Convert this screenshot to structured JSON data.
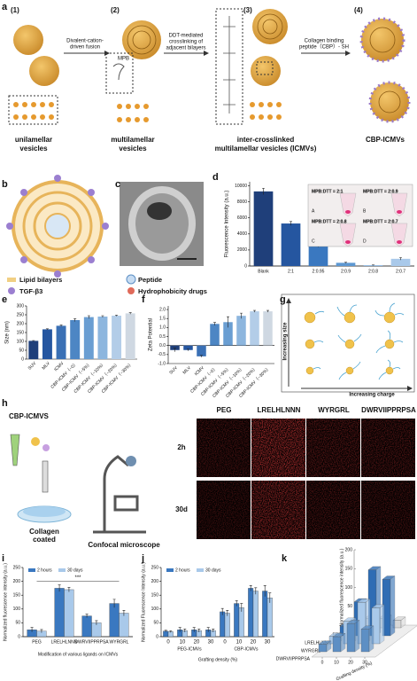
{
  "figure": {
    "panel_labels": [
      "a",
      "b",
      "c",
      "d",
      "e",
      "f",
      "g",
      "h",
      "i",
      "j",
      "k"
    ],
    "a": {
      "steps": [
        "(1)",
        "(2)",
        "(3)",
        "(4)"
      ],
      "arrow_1": [
        "Divalent-cation-",
        "driven fusion"
      ],
      "arrow_2": [
        "DDT-mediated",
        "crosslinking of",
        "adjacent bilayers"
      ],
      "arrow_3": [
        "Collagen binding",
        "peptide（CBP）- SH"
      ],
      "mpb": "MPB",
      "caption_1": [
        "unilamellar",
        "vesicles"
      ],
      "caption_2": [
        "multilamellar",
        "vesicles"
      ],
      "caption_3": [
        "inter-crosslinked",
        "multilamellar vesicles (ICMVs)"
      ],
      "caption_4": [
        "CBP-ICMVs"
      ]
    },
    "b": {
      "legend": [
        "Lipid bilayers",
        "TGF-β3",
        "Peptide",
        "Hydrophobicity drugs"
      ]
    },
    "g": {
      "y_label": "Increasing size",
      "x_label": "Increasing charge"
    },
    "h": {
      "reagent": "CBP-ICMVS",
      "substrate": [
        "Collagen",
        "coated"
      ],
      "instrument": "Confocal microscope",
      "columns": [
        "PEG",
        "LRELHLNNN",
        "WYRGRL",
        "DWRVIIPPRPSA"
      ],
      "rows": [
        "2h",
        "30d"
      ]
    }
  },
  "chart_data": [
    {
      "type": "bar",
      "y_label": "Fluorescence Intensity (a.u.)",
      "categories": [
        "Blank",
        "2:1",
        "2:0.95",
        "2:0.9",
        "2:0.8",
        "2:0.7"
      ],
      "values": [
        9300,
        5300,
        2700,
        400,
        100,
        900
      ],
      "errors": [
        400,
        250,
        350,
        60,
        30,
        150
      ],
      "colors": [
        "#1f3f7a",
        "#2556a0",
        "#3a78c0",
        "#5d98d2",
        "#8ab6e0",
        "#a9c9ea"
      ],
      "ylim": [
        0,
        10500
      ],
      "yticks": [
        0,
        2000,
        4000,
        6000,
        8000,
        10000
      ],
      "insets": [
        "MPB:DTT = 2:1",
        "MPB:DTT = 2:0.9",
        "MPB:DTT = 2:0.8",
        "MPB:DTT = 2:0.7"
      ],
      "inset_letters": [
        "A",
        "B",
        "C",
        "D"
      ]
    },
    {
      "type": "bar",
      "y_label": "Size (nm)",
      "categories": [
        "SUV",
        "MLV",
        "ICMV",
        "CBP-ICMV（~0）",
        "CBP-ICMV（~5%）",
        "CBP-ICMV（~10%）",
        "CBP-ICMV（~20%）",
        "CBP-ICMV（~30%）"
      ],
      "values": [
        103,
        168,
        188,
        220,
        237,
        240,
        245,
        258
      ],
      "errors": [
        2,
        3,
        5,
        8,
        8,
        5,
        3,
        4
      ],
      "colors": [
        "#1f3f7a",
        "#2556a0",
        "#3a70b5",
        "#4d86c4",
        "#6a9ed2",
        "#8db6de",
        "#b3cde8",
        "#cfd8e2"
      ],
      "ylim": [
        0,
        300
      ],
      "yticks": [
        0,
        50,
        100,
        150,
        200,
        250,
        300
      ]
    },
    {
      "type": "bar",
      "y_label": "Zeta Potential",
      "categories": [
        "SUV",
        "MLV",
        "ICMV",
        "CBP-ICMV（~0）",
        "CBP-ICMV（~5%）",
        "CBP-ICMV（~10%）",
        "CBP-ICMV（~20%）",
        "CBP-ICMV（~30%）"
      ],
      "values": [
        -0.25,
        -0.25,
        -0.6,
        1.2,
        1.3,
        1.65,
        1.9,
        1.9
      ],
      "errors": [
        0.1,
        0.05,
        0.05,
        0.08,
        0.3,
        0.15,
        0.05,
        0.05
      ],
      "colors": [
        "#1f3f7a",
        "#2556a0",
        "#3a70b5",
        "#4d86c4",
        "#6a9ed2",
        "#8db6de",
        "#b3cde8",
        "#cfd8e2"
      ],
      "ylim": [
        -1,
        2.2
      ],
      "yticks": [
        {
          "value": -1,
          "label": "-1.0"
        },
        {
          "value": -0.5,
          "label": "-0.5"
        },
        {
          "value": 0,
          "label": "0.0"
        },
        {
          "value": 0.5,
          "label": "0.5"
        },
        {
          "value": 1,
          "label": "1.0"
        },
        {
          "value": 1.5,
          "label": "1.5"
        },
        {
          "value": 2,
          "label": "2.0"
        }
      ]
    },
    {
      "type": "grouped_bar",
      "y_label": "Normalized fluorescence intensity (a.u.)",
      "x_label": "Modification of various ligands on ICMVs",
      "categories": [
        "PEG",
        "LRELHLNNN",
        "DWRVIIPPRPSA",
        "WYRGRL"
      ],
      "series": [
        {
          "name": "2 hours",
          "color": "#3a78c0",
          "values": [
            25,
            175,
            75,
            120
          ],
          "errors": [
            8,
            12,
            6,
            15
          ]
        },
        {
          "name": "30 days",
          "color": "#a9c9ea",
          "values": [
            20,
            170,
            50,
            85
          ],
          "errors": [
            6,
            8,
            8,
            10
          ]
        }
      ],
      "ylim": [
        0,
        250
      ],
      "yticks": [
        0,
        50,
        100,
        150,
        200,
        250
      ],
      "annotation": "***"
    },
    {
      "type": "grouped_bar",
      "y_label": "Normalized Fluorescence Intensity (a.u.)",
      "x_label": "Grafting density (%)",
      "categories": [
        "0",
        "10",
        "20",
        "30",
        "0",
        "10",
        "20",
        "30"
      ],
      "groups": [
        "PEG-ICMVs",
        "CBP-ICMVs"
      ],
      "series": [
        {
          "name": "2 hours",
          "color": "#3a78c0",
          "values": [
            20,
            25,
            25,
            25,
            90,
            120,
            175,
            165
          ],
          "errors": [
            3,
            8,
            8,
            8,
            12,
            10,
            10,
            20
          ]
        },
        {
          "name": "30 days",
          "color": "#a9c9ea",
          "values": [
            18,
            22,
            22,
            22,
            85,
            105,
            165,
            140
          ],
          "errors": [
            3,
            6,
            6,
            6,
            10,
            15,
            12,
            18
          ]
        }
      ],
      "ylim": [
        0,
        250
      ],
      "yticks": [
        0,
        50,
        100,
        150,
        200,
        250
      ]
    },
    {
      "type": "bar3d",
      "z_label": "Normalized fluorescence intensity (a.u.)",
      "x_label": "Grafting density (%)",
      "x": [
        0,
        10,
        20,
        30
      ],
      "rows": [
        "DWRVIIPPRPSA",
        "WYRGRL",
        "LRELHLNNN",
        "PEG"
      ],
      "row_colors": [
        "#5d8fc4",
        "#a9c9ea",
        "#2f6db4",
        "#d8d8d8"
      ],
      "values": [
        [
          20,
          40,
          75,
          60
        ],
        [
          20,
          60,
          110,
          95
        ],
        [
          25,
          90,
          175,
          150
        ],
        [
          20,
          25,
          25,
          20
        ]
      ],
      "zlim": [
        0,
        200
      ],
      "zticks": [
        0,
        50,
        100,
        150,
        200
      ]
    }
  ]
}
